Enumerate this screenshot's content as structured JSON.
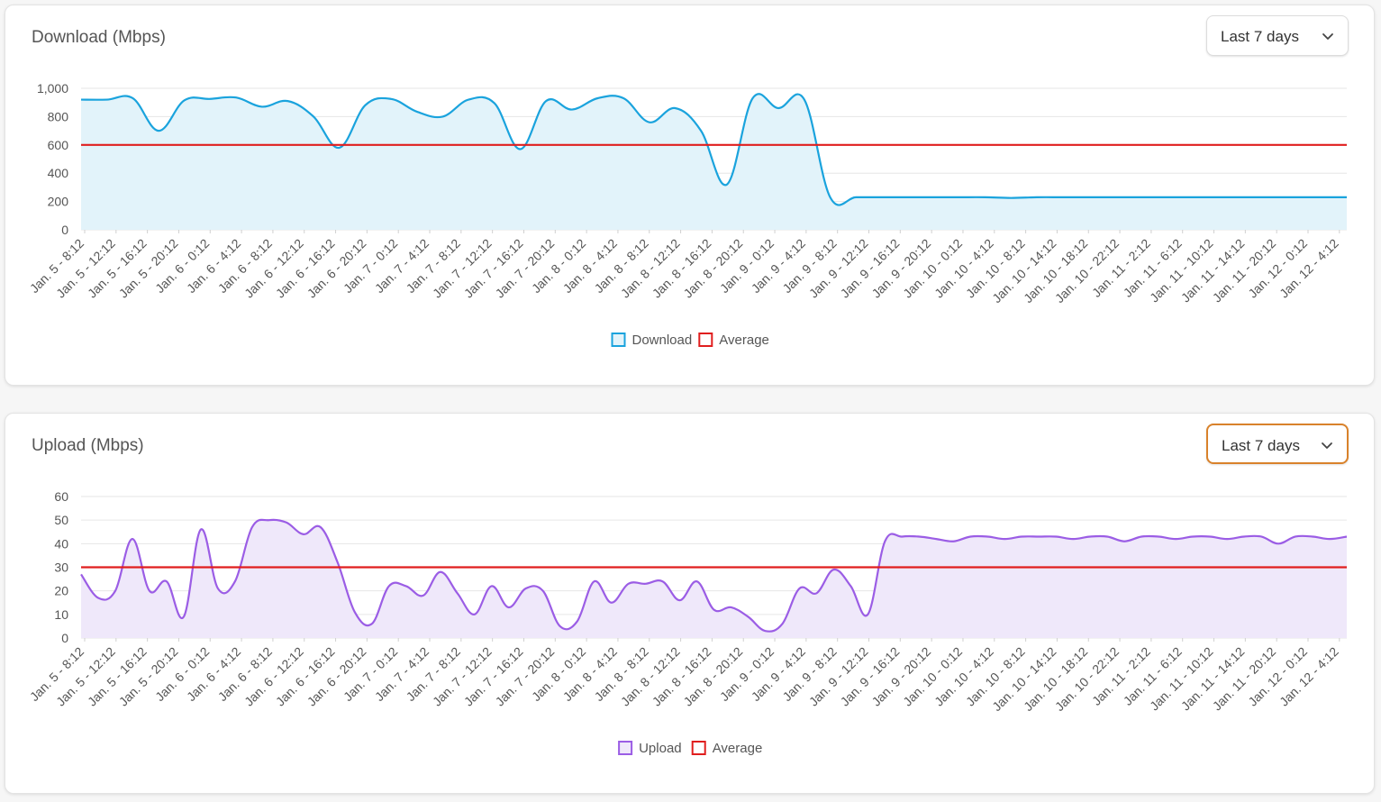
{
  "x_labels": [
    "Jan. 5 - 8:12",
    "Jan. 5 - 12:12",
    "Jan. 5 - 16:12",
    "Jan. 5 - 20:12",
    "Jan. 6 - 0:12",
    "Jan. 6 - 4:12",
    "Jan. 6 - 8:12",
    "Jan. 6 - 12:12",
    "Jan. 6 - 16:12",
    "Jan. 6 - 20:12",
    "Jan. 7 - 0:12",
    "Jan. 7 - 4:12",
    "Jan. 7 - 8:12",
    "Jan. 7 - 12:12",
    "Jan. 7 - 16:12",
    "Jan. 7 - 20:12",
    "Jan. 8 - 0:12",
    "Jan. 8 - 4:12",
    "Jan. 8 - 8:12",
    "Jan. 8 - 12:12",
    "Jan. 8 - 16:12",
    "Jan. 8 - 20:12",
    "Jan. 9 - 0:12",
    "Jan. 9 - 4:12",
    "Jan. 9 - 8:12",
    "Jan. 9 - 12:12",
    "Jan. 9 - 16:12",
    "Jan. 9 - 20:12",
    "Jan. 10 - 0:12",
    "Jan. 10 - 4:12",
    "Jan. 10 - 8:12",
    "Jan. 10 - 14:12",
    "Jan. 10 - 18:12",
    "Jan. 10 - 22:12",
    "Jan. 11 - 2:12",
    "Jan. 11 - 6:12",
    "Jan. 11 - 10:12",
    "Jan. 11 - 14:12",
    "Jan. 11 - 20:12",
    "Jan. 12 - 0:12",
    "Jan. 12 - 4:12"
  ],
  "download": {
    "title": "Download (Mbps)",
    "range_label": "Last 7 days",
    "legend": [
      "Download",
      "Average"
    ]
  },
  "upload": {
    "title": "Upload (Mbps)",
    "range_label": "Last 7 days",
    "legend": [
      "Upload",
      "Average"
    ]
  },
  "colors": {
    "download": "#1aa3dd",
    "download_fill": "#e2f3fa",
    "upload": "#9b5de5",
    "upload_fill": "#efe8fa",
    "average": "#e01e1e",
    "grid": "#e6e6e6",
    "focus": "#d9822b"
  },
  "chart_data": [
    {
      "type": "area",
      "x_category_count": 41,
      "ylim": [
        0,
        1000
      ],
      "yticks": [
        0,
        200,
        400,
        600,
        800,
        1000
      ],
      "ytick_labels": [
        "0",
        "200",
        "400",
        "600",
        "800",
        "1,000"
      ],
      "grid": true,
      "legend_position": "bottom",
      "series": [
        {
          "name": "Download",
          "values": [
            920,
            920,
            930,
            700,
            915,
            925,
            935,
            870,
            910,
            800,
            580,
            880,
            925,
            835,
            800,
            920,
            895,
            570,
            910,
            850,
            930,
            930,
            760,
            860,
            700,
            320,
            930,
            860,
            920,
            230,
            230,
            230,
            230,
            230,
            230,
            230,
            225,
            230,
            230,
            230,
            230,
            230,
            230,
            230,
            230,
            230,
            230,
            230,
            230,
            230
          ]
        },
        {
          "name": "Average",
          "values": [
            600,
            600
          ]
        }
      ]
    },
    {
      "type": "area",
      "x_category_count": 41,
      "ylim": [
        0,
        60
      ],
      "yticks": [
        0,
        10,
        20,
        30,
        40,
        50,
        60
      ],
      "ytick_labels": [
        "0",
        "10",
        "20",
        "30",
        "40",
        "50",
        "60"
      ],
      "grid": true,
      "legend_position": "bottom",
      "series": [
        {
          "name": "Upload",
          "values": [
            27,
            17,
            20,
            42,
            20,
            24,
            9,
            46,
            21,
            24,
            47,
            50,
            49,
            44,
            47,
            32,
            11,
            6,
            22,
            22,
            18,
            28,
            19,
            10,
            22,
            13,
            21,
            20,
            5,
            7,
            24,
            15,
            23,
            23,
            24,
            16,
            24,
            12,
            13,
            9,
            3,
            6,
            21,
            19,
            29,
            22,
            10,
            41,
            43,
            43,
            42,
            41,
            43,
            43,
            42,
            43,
            43,
            43,
            42,
            43,
            43,
            41,
            43,
            43,
            42,
            43,
            43,
            42,
            43,
            43,
            40,
            43,
            43,
            42,
            43
          ]
        },
        {
          "name": "Average",
          "values": [
            30,
            30
          ]
        }
      ]
    }
  ]
}
